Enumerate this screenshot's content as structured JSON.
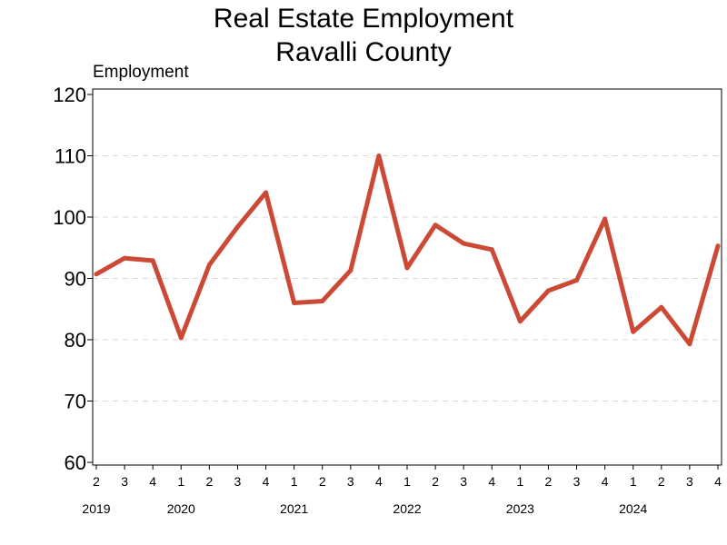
{
  "chart_data": {
    "type": "line",
    "title_line1": "Real Estate Employment",
    "title_line2": "Ravalli County",
    "ylabel": "Employment",
    "xlabel": "",
    "ylim": [
      60,
      120
    ],
    "yticks": [
      60,
      70,
      80,
      90,
      100,
      110,
      120
    ],
    "grid": true,
    "line_color": "#cc4a35",
    "x": [
      "2019 Q2",
      "2019 Q3",
      "2019 Q4",
      "2020 Q1",
      "2020 Q2",
      "2020 Q3",
      "2020 Q4",
      "2021 Q1",
      "2021 Q2",
      "2021 Q3",
      "2021 Q4",
      "2022 Q1",
      "2022 Q2",
      "2022 Q3",
      "2022 Q4",
      "2023 Q1",
      "2023 Q2",
      "2023 Q3",
      "2023 Q4",
      "2024 Q1",
      "2024 Q2",
      "2024 Q3",
      "2024 Q4"
    ],
    "quarter_labels": [
      "2",
      "3",
      "4",
      "1",
      "2",
      "3",
      "4",
      "1",
      "2",
      "3",
      "4",
      "1",
      "2",
      "3",
      "4",
      "1",
      "2",
      "3",
      "4",
      "1",
      "2",
      "3",
      "4"
    ],
    "years": [
      {
        "label": "2019",
        "first_index": 0
      },
      {
        "label": "2020",
        "first_index": 3
      },
      {
        "label": "2021",
        "first_index": 7
      },
      {
        "label": "2022",
        "first_index": 11
      },
      {
        "label": "2023",
        "first_index": 15
      },
      {
        "label": "2024",
        "first_index": 19
      }
    ],
    "series": [
      {
        "values": [
          90.7,
          93.3,
          92.9,
          80.3,
          92.2,
          98.4,
          104.0,
          86.0,
          86.3,
          91.3,
          110.0,
          91.7,
          98.7,
          95.7,
          94.7,
          83.0,
          88.0,
          89.7,
          99.7,
          81.3,
          85.3,
          79.3,
          95.3
        ]
      }
    ]
  }
}
